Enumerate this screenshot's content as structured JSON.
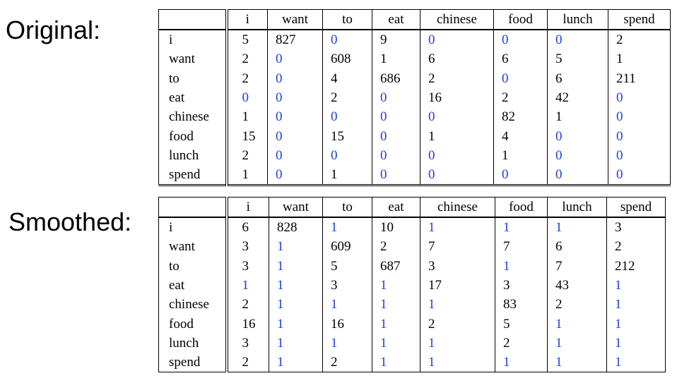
{
  "labels": {
    "original": "Original:",
    "smoothed": "Smoothed:"
  },
  "colors": {
    "text": "#000000",
    "highlight_low": "#1f3fe0"
  },
  "original": {
    "columns": [
      "",
      "i",
      "want",
      "to",
      "eat",
      "chinese",
      "food",
      "lunch",
      "spend"
    ],
    "rows": [
      {
        "word": "i",
        "counts": [
          "5",
          "827",
          "0",
          "9",
          "0",
          "0",
          "0",
          "2"
        ]
      },
      {
        "word": "want",
        "counts": [
          "2",
          "0",
          "608",
          "1",
          "6",
          "6",
          "5",
          "1"
        ]
      },
      {
        "word": "to",
        "counts": [
          "2",
          "0",
          "4",
          "686",
          "2",
          "0",
          "6",
          "211"
        ]
      },
      {
        "word": "eat",
        "counts": [
          "0",
          "0",
          "2",
          "0",
          "16",
          "2",
          "42",
          "0"
        ]
      },
      {
        "word": "chinese",
        "counts": [
          "1",
          "0",
          "0",
          "0",
          "0",
          "82",
          "1",
          "0"
        ]
      },
      {
        "word": "food",
        "counts": [
          "15",
          "0",
          "15",
          "0",
          "1",
          "4",
          "0",
          "0"
        ]
      },
      {
        "word": "lunch",
        "counts": [
          "2",
          "0",
          "0",
          "0",
          "0",
          "1",
          "0",
          "0"
        ]
      },
      {
        "word": "spend",
        "counts": [
          "1",
          "0",
          "1",
          "0",
          "0",
          "0",
          "0",
          "0"
        ]
      }
    ]
  },
  "smoothed": {
    "columns": [
      "",
      "i",
      "want",
      "to",
      "eat",
      "chinese",
      "food",
      "lunch",
      "spend"
    ],
    "rows": [
      {
        "word": "i",
        "counts": [
          "6",
          "828",
          "1",
          "10",
          "1",
          "1",
          "1",
          "3"
        ]
      },
      {
        "word": "want",
        "counts": [
          "3",
          "1",
          "609",
          "2",
          "7",
          "7",
          "6",
          "2"
        ]
      },
      {
        "word": "to",
        "counts": [
          "3",
          "1",
          "5",
          "687",
          "3",
          "1",
          "7",
          "212"
        ]
      },
      {
        "word": "eat",
        "counts": [
          "1",
          "1",
          "3",
          "1",
          "17",
          "3",
          "43",
          "1"
        ]
      },
      {
        "word": "chinese",
        "counts": [
          "2",
          "1",
          "1",
          "1",
          "1",
          "83",
          "2",
          "1"
        ]
      },
      {
        "word": "food",
        "counts": [
          "16",
          "1",
          "16",
          "1",
          "2",
          "5",
          "1",
          "1"
        ]
      },
      {
        "word": "lunch",
        "counts": [
          "3",
          "1",
          "1",
          "1",
          "1",
          "2",
          "1",
          "1"
        ]
      },
      {
        "word": "spend",
        "counts": [
          "2",
          "1",
          "2",
          "1",
          "1",
          "1",
          "1",
          "1"
        ]
      }
    ]
  }
}
